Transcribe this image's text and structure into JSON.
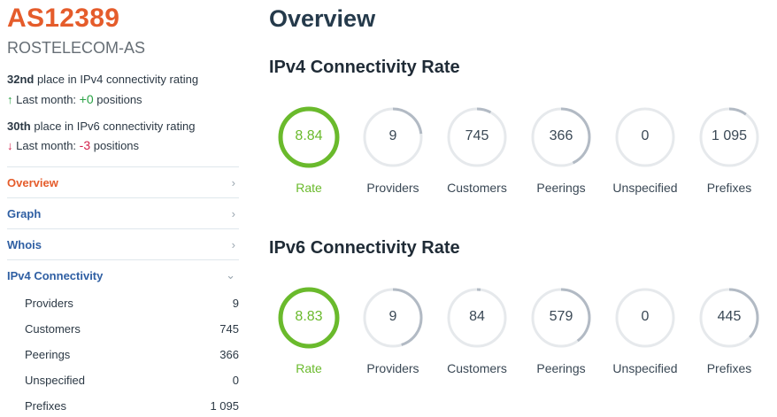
{
  "as": {
    "number": "AS12389",
    "name": "ROSTELECOM-AS"
  },
  "ranking": {
    "ipv4": {
      "place": "32nd",
      "text": " place in IPv4 connectivity rating",
      "arrow": "↑",
      "last_month_label": " Last month: ",
      "delta": "+0",
      "suffix": " positions"
    },
    "ipv6": {
      "place": "30th",
      "text": " place in IPv6 connectivity rating",
      "arrow": "↓",
      "last_month_label": " Last month: ",
      "delta": "-3",
      "suffix": " positions"
    }
  },
  "nav": {
    "overview": "Overview",
    "graph": "Graph",
    "whois": "Whois",
    "ipv4": "IPv4 Connectivity",
    "sub_items": [
      {
        "label": "Providers",
        "value": "9"
      },
      {
        "label": "Customers",
        "value": "745"
      },
      {
        "label": "Peerings",
        "value": "366"
      },
      {
        "label": "Unspecified",
        "value": "0"
      },
      {
        "label": "Prefixes",
        "value": "1 095"
      }
    ]
  },
  "main": {
    "title": "Overview",
    "ipv4_title": "IPv4 Connectivity Rate",
    "ipv6_title": "IPv6 Connectivity Rate",
    "ipv4_gauges": [
      {
        "value": "8.84",
        "label": "Rate",
        "fraction": 1.0
      },
      {
        "value": "9",
        "label": "Providers",
        "fraction": 0.23
      },
      {
        "value": "745",
        "label": "Customers",
        "fraction": 0.08
      },
      {
        "value": "366",
        "label": "Peerings",
        "fraction": 0.43
      },
      {
        "value": "0",
        "label": "Unspecified",
        "fraction": 0.0
      },
      {
        "value": "1 095",
        "label": "Prefixes",
        "fraction": 0.1
      }
    ],
    "ipv6_gauges": [
      {
        "value": "8.83",
        "label": "Rate",
        "fraction": 1.0
      },
      {
        "value": "9",
        "label": "Providers",
        "fraction": 0.45
      },
      {
        "value": "84",
        "label": "Customers",
        "fraction": 0.02
      },
      {
        "value": "579",
        "label": "Peerings",
        "fraction": 0.4
      },
      {
        "value": "0",
        "label": "Unspecified",
        "fraction": 0.0
      },
      {
        "value": "445",
        "label": "Prefixes",
        "fraction": 0.37
      }
    ]
  },
  "colors": {
    "accent": "#e55c2b",
    "rate_green": "#6aba2c",
    "track": "#e6e9ec",
    "arc": "#b2bac4",
    "link": "#2f5fa3"
  },
  "icons": {
    "chevron_right": "›",
    "chevron_down": "⌄"
  }
}
